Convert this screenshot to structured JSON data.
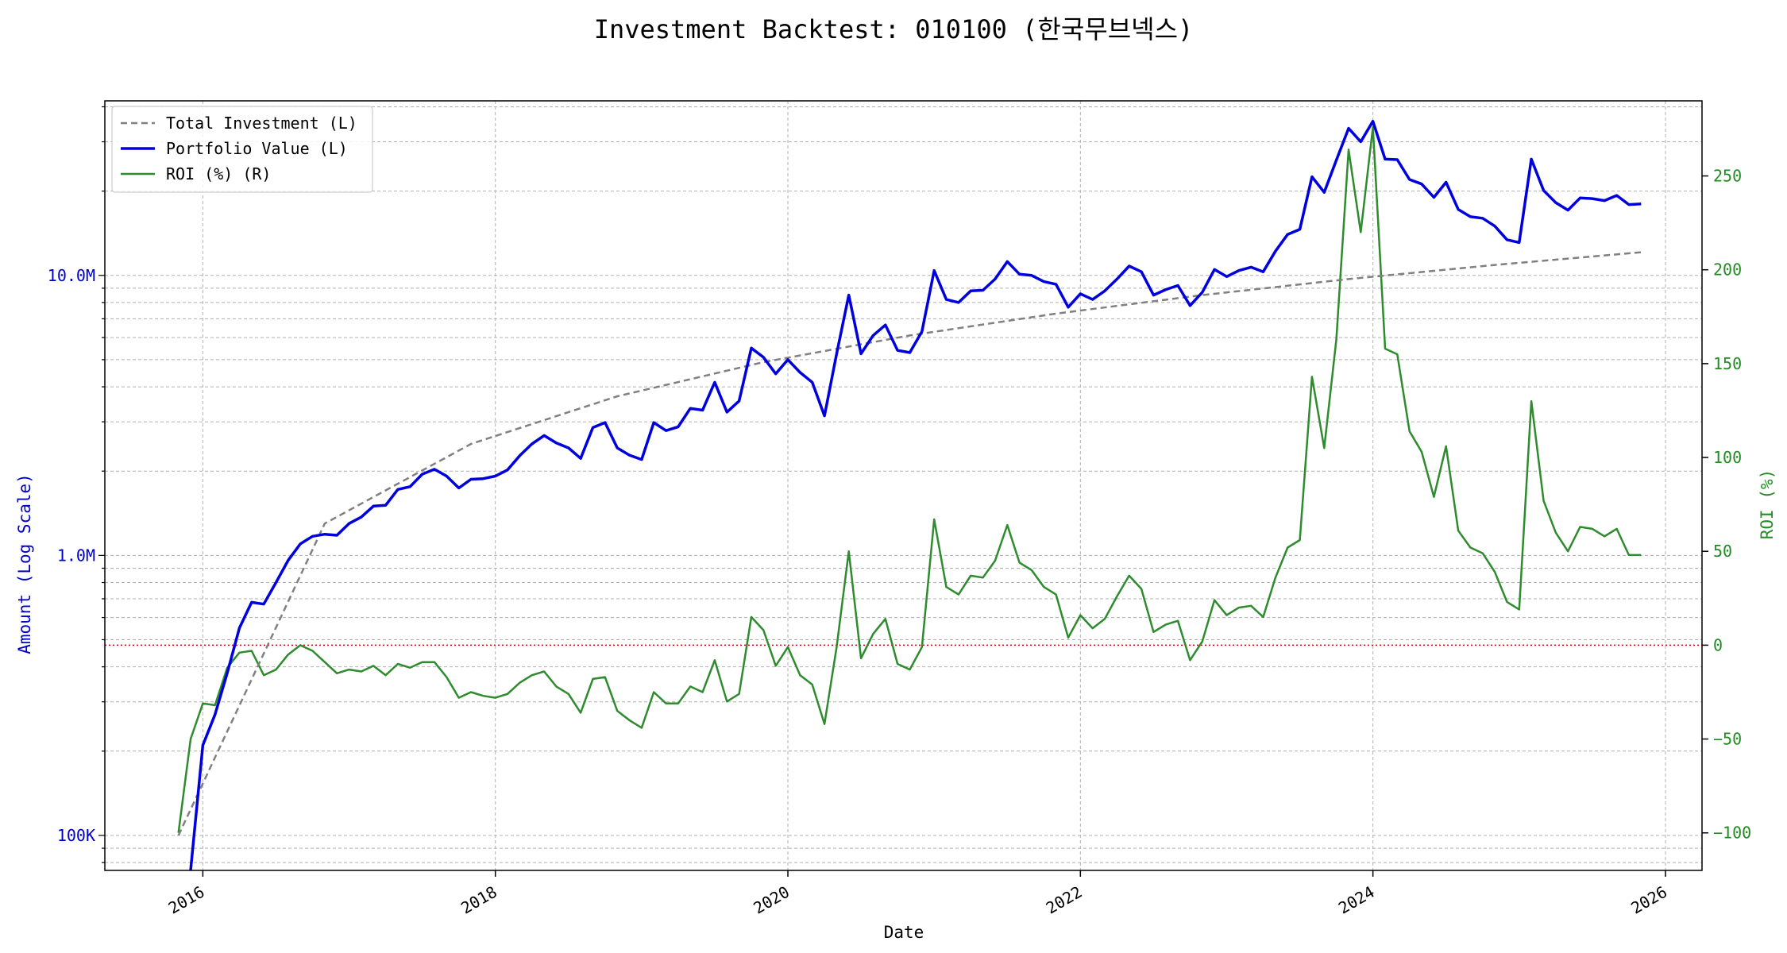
{
  "chart_data": {
    "type": "line",
    "title": "Investment Backtest: 010100 (한국무브넥스)",
    "xlabel": "Date",
    "ylabel_left": "Amount (Log Scale)",
    "ylabel_right": "ROI (%)",
    "left_axis": {
      "scale": "log",
      "ylim": [
        75000,
        42000000
      ],
      "ticks": [
        {
          "value": 100000,
          "label": "100K"
        },
        {
          "value": 1000000,
          "label": "1.0M"
        },
        {
          "value": 10000000,
          "label": "10.0M"
        }
      ]
    },
    "right_axis": {
      "scale": "linear",
      "ylim": [
        -120,
        290
      ],
      "ticks": [
        {
          "value": -100,
          "label": "−100"
        },
        {
          "value": -50,
          "label": "−50"
        },
        {
          "value": 0,
          "label": "0"
        },
        {
          "value": 50,
          "label": "50"
        },
        {
          "value": 100,
          "label": "100"
        },
        {
          "value": 150,
          "label": "150"
        },
        {
          "value": 200,
          "label": "200"
        },
        {
          "value": 250,
          "label": "250"
        }
      ]
    },
    "x_axis": {
      "start": "2015-11",
      "end": "2025-11",
      "xlim": [
        2015.33,
        2026.25
      ],
      "ticks": [
        {
          "value": 2016,
          "label": "2016"
        },
        {
          "value": 2018,
          "label": "2018"
        },
        {
          "value": 2020,
          "label": "2020"
        },
        {
          "value": 2022,
          "label": "2022"
        },
        {
          "value": 2024,
          "label": "2024"
        },
        {
          "value": 2026,
          "label": "2026"
        }
      ]
    },
    "grid": true,
    "legend": {
      "placement": "top-left",
      "entries": [
        "Total Investment (L)",
        "Portfolio Value (L)",
        "ROI (%) (R)"
      ]
    },
    "colors": {
      "investment": "#808080",
      "portfolio": "#0000dd",
      "roi": "#2e8b2e",
      "zero_line": "#cc0000",
      "left_axis": "#0000cc",
      "right_axis": "#228b22"
    },
    "series": [
      {
        "name": "Total Investment (L)",
        "axis": "left",
        "style": "dashed",
        "x": [
          "2015-11",
          "2016-11",
          "2017-11",
          "2018-11",
          "2019-11",
          "2020-11",
          "2021-11",
          "2022-11",
          "2023-11",
          "2024-11",
          "2025-11"
        ],
        "values": [
          100000,
          1300000,
          2500000,
          3700000,
          4900000,
          6100000,
          7300000,
          8500000,
          9700000,
          10900000,
          12100000
        ]
      },
      {
        "name": "Portfolio Value (L)",
        "axis": "left",
        "style": "solid",
        "x": [
          "2015-12",
          "2016-01",
          "2016-02",
          "2016-03",
          "2016-04",
          "2016-05",
          "2016-06",
          "2016-07",
          "2016-08",
          "2016-09",
          "2016-10",
          "2016-11",
          "2016-12",
          "2017-01",
          "2017-02",
          "2017-03",
          "2017-04",
          "2017-05",
          "2017-06",
          "2017-07",
          "2017-08",
          "2017-09",
          "2017-10",
          "2017-11",
          "2017-12",
          "2018-01",
          "2018-02",
          "2018-03",
          "2018-04",
          "2018-05",
          "2018-06",
          "2018-07",
          "2018-08",
          "2018-09",
          "2018-10",
          "2018-11",
          "2018-12",
          "2019-01",
          "2019-02",
          "2019-03",
          "2019-04",
          "2019-05",
          "2019-06",
          "2019-07",
          "2019-08",
          "2019-09",
          "2019-10",
          "2019-11",
          "2019-12",
          "2020-01",
          "2020-02",
          "2020-03",
          "2020-04",
          "2020-05",
          "2020-06",
          "2020-07",
          "2020-08",
          "2020-09",
          "2020-10",
          "2020-11",
          "2020-12",
          "2021-01",
          "2021-02",
          "2021-03",
          "2021-04",
          "2021-05",
          "2021-06",
          "2021-07",
          "2021-08",
          "2021-09",
          "2021-10",
          "2021-11",
          "2021-12",
          "2022-01",
          "2022-02",
          "2022-03",
          "2022-04",
          "2022-05",
          "2022-06",
          "2022-07",
          "2022-08",
          "2022-09",
          "2022-10",
          "2022-11",
          "2022-12",
          "2023-01",
          "2023-02",
          "2023-03",
          "2023-04",
          "2023-05",
          "2023-06",
          "2023-07",
          "2023-08",
          "2023-09",
          "2023-10",
          "2023-11",
          "2023-12",
          "2024-01",
          "2024-02",
          "2024-03",
          "2024-04",
          "2024-05",
          "2024-06",
          "2024-07",
          "2024-08",
          "2024-09",
          "2024-10",
          "2024-11",
          "2024-12",
          "2025-01",
          "2025-02",
          "2025-03",
          "2025-04",
          "2025-05",
          "2025-06",
          "2025-07",
          "2025-08",
          "2025-09",
          "2025-10",
          "2025-11"
        ],
        "values": [
          75000,
          210000,
          270000,
          380000,
          550000,
          680000,
          670000,
          800000,
          960000,
          1100000,
          1170000,
          1190000,
          1180000,
          1300000,
          1370000,
          1500000,
          1510000,
          1720000,
          1760000,
          1950000,
          2030000,
          1920000,
          1740000,
          1870000,
          1880000,
          1920000,
          2020000,
          2270000,
          2500000,
          2680000,
          2520000,
          2420000,
          2220000,
          2860000,
          2980000,
          2420000,
          2280000,
          2200000,
          2980000,
          2790000,
          2880000,
          3350000,
          3300000,
          4150000,
          3250000,
          3560000,
          5500000,
          5100000,
          4450000,
          5000000,
          4500000,
          4150000,
          3150000,
          5250000,
          8500000,
          5250000,
          6100000,
          6650000,
          5400000,
          5300000,
          6300000,
          10400000,
          8200000,
          8000000,
          8800000,
          8850000,
          9700000,
          11200000,
          10100000,
          10000000,
          9500000,
          9300000,
          7700000,
          8600000,
          8200000,
          8800000,
          9700000,
          10800000,
          10300000,
          8500000,
          8900000,
          9200000,
          7800000,
          8700000,
          10500000,
          9900000,
          10400000,
          10700000,
          10300000,
          12200000,
          14000000,
          14600000,
          22500000,
          19800000,
          25800000,
          33500000,
          30000000,
          35500000,
          26000000,
          25900000,
          22000000,
          21200000,
          19000000,
          21500000,
          17200000,
          16200000,
          16000000,
          15000000,
          13400000,
          13100000,
          26000000,
          20100000,
          18200000,
          17100000,
          18900000,
          18800000,
          18500000,
          19300000,
          17900000,
          18000000
        ]
      },
      {
        "name": "ROI (%) (R)",
        "axis": "right",
        "style": "solid",
        "x": [
          "2015-11",
          "2015-12",
          "2016-01",
          "2016-02",
          "2016-03",
          "2016-04",
          "2016-05",
          "2016-06",
          "2016-07",
          "2016-08",
          "2016-09",
          "2016-10",
          "2016-11",
          "2016-12",
          "2017-01",
          "2017-02",
          "2017-03",
          "2017-04",
          "2017-05",
          "2017-06",
          "2017-07",
          "2017-08",
          "2017-09",
          "2017-10",
          "2017-11",
          "2017-12",
          "2018-01",
          "2018-02",
          "2018-03",
          "2018-04",
          "2018-05",
          "2018-06",
          "2018-07",
          "2018-08",
          "2018-09",
          "2018-10",
          "2018-11",
          "2018-12",
          "2019-01",
          "2019-02",
          "2019-03",
          "2019-04",
          "2019-05",
          "2019-06",
          "2019-07",
          "2019-08",
          "2019-09",
          "2019-10",
          "2019-11",
          "2019-12",
          "2020-01",
          "2020-02",
          "2020-03",
          "2020-04",
          "2020-05",
          "2020-06",
          "2020-07",
          "2020-08",
          "2020-09",
          "2020-10",
          "2020-11",
          "2020-12",
          "2021-01",
          "2021-02",
          "2021-03",
          "2021-04",
          "2021-05",
          "2021-06",
          "2021-07",
          "2021-08",
          "2021-09",
          "2021-10",
          "2021-11",
          "2021-12",
          "2022-01",
          "2022-02",
          "2022-03",
          "2022-04",
          "2022-05",
          "2022-06",
          "2022-07",
          "2022-08",
          "2022-09",
          "2022-10",
          "2022-11",
          "2022-12",
          "2023-01",
          "2023-02",
          "2023-03",
          "2023-04",
          "2023-05",
          "2023-06",
          "2023-07",
          "2023-08",
          "2023-09",
          "2023-10",
          "2023-11",
          "2023-12",
          "2024-01",
          "2024-02",
          "2024-03",
          "2024-04",
          "2024-05",
          "2024-06",
          "2024-07",
          "2024-08",
          "2024-09",
          "2024-10",
          "2024-11",
          "2024-12",
          "2025-01",
          "2025-02",
          "2025-03",
          "2025-04",
          "2025-05",
          "2025-06",
          "2025-07",
          "2025-08",
          "2025-09",
          "2025-10",
          "2025-11"
        ],
        "values": [
          -100,
          -50,
          -31,
          -32,
          -12,
          -4,
          -3,
          -16,
          -13,
          -5,
          0,
          -3,
          -9,
          -15,
          -13,
          -14,
          -11,
          -16,
          -10,
          -12,
          -9,
          -9,
          -17,
          -28,
          -25,
          -27,
          -28,
          -26,
          -20,
          -16,
          -14,
          -22,
          -26,
          -36,
          -18,
          -17,
          -35,
          -40,
          -44,
          -25,
          -31,
          -31,
          -22,
          -25,
          -8,
          -30,
          -26,
          15,
          8,
          -11,
          -1,
          -16,
          -21,
          -42,
          -1,
          50,
          -7,
          6,
          14,
          -10,
          -13,
          -1,
          67,
          31,
          27,
          37,
          36,
          45,
          64,
          44,
          40,
          31,
          27,
          4,
          16,
          9,
          14,
          26,
          37,
          30,
          7,
          11,
          13,
          -8,
          2,
          24,
          16,
          20,
          21,
          15,
          36,
          52,
          56,
          143,
          105,
          163,
          264,
          220,
          276,
          158,
          155,
          114,
          103,
          79,
          106,
          61,
          52,
          49,
          39,
          23,
          19,
          130,
          77,
          60,
          50,
          63,
          62,
          58,
          62,
          48,
          48
        ]
      }
    ]
  }
}
